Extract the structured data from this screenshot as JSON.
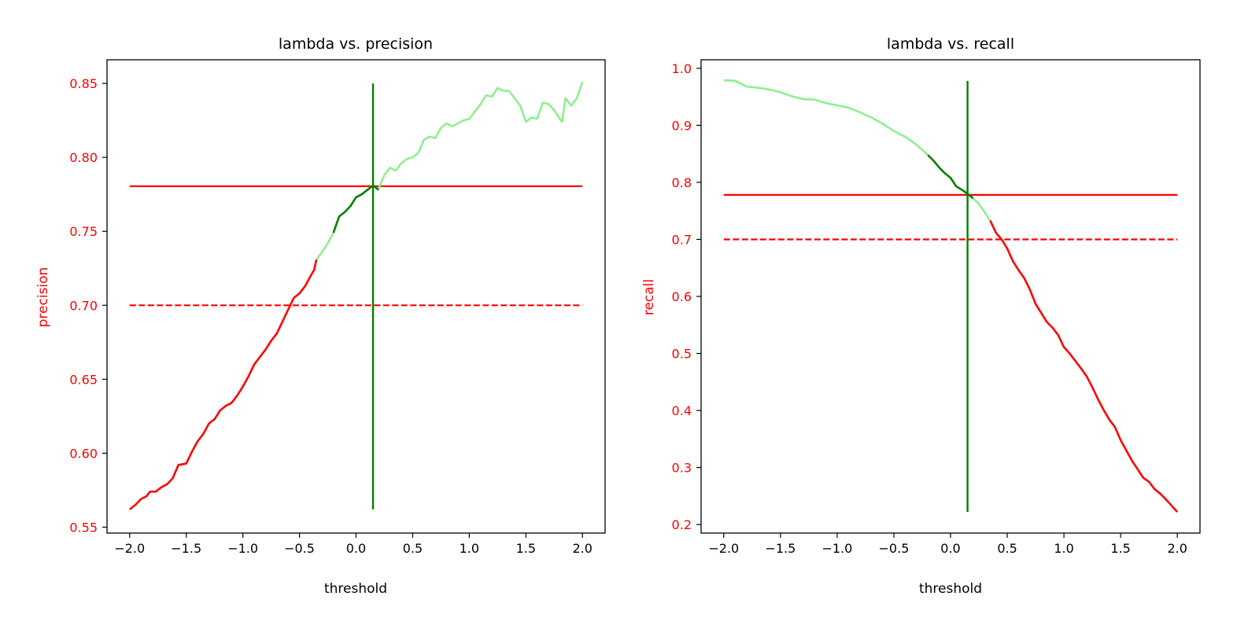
{
  "colors": {
    "red": "#ff0000",
    "green": "#008000",
    "lightgreen": "#90ee90",
    "axis": "#000000"
  },
  "chart_data": [
    {
      "type": "line",
      "title": "lambda vs. precision",
      "xlabel": "threshold",
      "ylabel": "precision",
      "xlim": [
        -2.2,
        2.2
      ],
      "ylim": [
        0.546,
        0.866
      ],
      "xticks": [
        -2.0,
        -1.5,
        -1.0,
        -0.5,
        0.0,
        0.5,
        1.0,
        1.5,
        2.0
      ],
      "xtick_labels": [
        "−2.0",
        "−1.5",
        "−1.0",
        "−0.5",
        "0.0",
        "0.5",
        "1.0",
        "1.5",
        "2.0"
      ],
      "yticks": [
        0.55,
        0.6,
        0.65,
        0.7,
        0.75,
        0.8,
        0.85
      ],
      "ytick_labels": [
        "0.55",
        "0.60",
        "0.65",
        "0.70",
        "0.75",
        "0.80",
        "0.85"
      ],
      "ylabel_color": "red",
      "yticks_color": "red",
      "grid": false,
      "hlines": [
        {
          "y": 0.7805,
          "color": "red",
          "style": "solid"
        },
        {
          "y": 0.7,
          "color": "red",
          "style": "dashed"
        }
      ],
      "vline": {
        "x": 0.15,
        "y0": 0.562,
        "y1": 0.85,
        "color": "green"
      },
      "series": [
        {
          "color": "red",
          "points": [
            [
              -2.0,
              0.562
            ],
            [
              -1.95,
              0.565
            ],
            [
              -1.9,
              0.569
            ],
            [
              -1.85,
              0.571
            ],
            [
              -1.82,
              0.574
            ],
            [
              -1.77,
              0.574
            ],
            [
              -1.72,
              0.577
            ],
            [
              -1.67,
              0.579
            ],
            [
              -1.62,
              0.583
            ],
            [
              -1.57,
              0.592
            ],
            [
              -1.5,
              0.593
            ],
            [
              -1.45,
              0.601
            ],
            [
              -1.4,
              0.608
            ],
            [
              -1.35,
              0.613
            ],
            [
              -1.3,
              0.62
            ],
            [
              -1.25,
              0.623
            ],
            [
              -1.2,
              0.629
            ],
            [
              -1.15,
              0.632
            ],
            [
              -1.1,
              0.634
            ],
            [
              -1.05,
              0.639
            ],
            [
              -1.0,
              0.645
            ],
            [
              -0.95,
              0.652
            ],
            [
              -0.9,
              0.66
            ],
            [
              -0.85,
              0.665
            ],
            [
              -0.8,
              0.67
            ],
            [
              -0.75,
              0.676
            ],
            [
              -0.7,
              0.681
            ],
            [
              -0.65,
              0.689
            ],
            [
              -0.6,
              0.697
            ],
            [
              -0.55,
              0.705
            ],
            [
              -0.5,
              0.708
            ],
            [
              -0.45,
              0.713
            ],
            [
              -0.4,
              0.72
            ],
            [
              -0.37,
              0.724
            ],
            [
              -0.35,
              0.731
            ]
          ]
        },
        {
          "color": "lightgreen",
          "points": [
            [
              -0.35,
              0.731
            ],
            [
              -0.3,
              0.736
            ],
            [
              -0.25,
              0.742
            ],
            [
              -0.2,
              0.749
            ]
          ]
        },
        {
          "color": "green",
          "points": [
            [
              -0.2,
              0.749
            ],
            [
              -0.15,
              0.76
            ],
            [
              -0.1,
              0.763
            ],
            [
              -0.05,
              0.767
            ],
            [
              0.0,
              0.773
            ],
            [
              0.05,
              0.775
            ],
            [
              0.1,
              0.778
            ],
            [
              0.15,
              0.781
            ],
            [
              0.2,
              0.778
            ]
          ]
        },
        {
          "color": "lightgreen",
          "points": [
            [
              0.2,
              0.779
            ],
            [
              0.25,
              0.788
            ],
            [
              0.3,
              0.793
            ],
            [
              0.35,
              0.791
            ],
            [
              0.4,
              0.796
            ],
            [
              0.45,
              0.799
            ],
            [
              0.5,
              0.8
            ],
            [
              0.55,
              0.803
            ],
            [
              0.6,
              0.812
            ],
            [
              0.65,
              0.814
            ],
            [
              0.7,
              0.813
            ],
            [
              0.75,
              0.82
            ],
            [
              0.8,
              0.823
            ],
            [
              0.85,
              0.821
            ],
            [
              0.9,
              0.823
            ],
            [
              0.95,
              0.825
            ],
            [
              1.0,
              0.826
            ],
            [
              1.05,
              0.831
            ],
            [
              1.1,
              0.836
            ],
            [
              1.15,
              0.842
            ],
            [
              1.2,
              0.841
            ],
            [
              1.25,
              0.847
            ],
            [
              1.3,
              0.845
            ],
            [
              1.35,
              0.845
            ],
            [
              1.4,
              0.84
            ],
            [
              1.45,
              0.835
            ],
            [
              1.5,
              0.824
            ],
            [
              1.55,
              0.827
            ],
            [
              1.6,
              0.826
            ],
            [
              1.65,
              0.837
            ],
            [
              1.7,
              0.836
            ],
            [
              1.75,
              0.832
            ],
            [
              1.8,
              0.826
            ],
            [
              1.82,
              0.824
            ],
            [
              1.85,
              0.84
            ],
            [
              1.9,
              0.835
            ],
            [
              1.95,
              0.84
            ],
            [
              2.0,
              0.851
            ]
          ]
        }
      ]
    },
    {
      "type": "line",
      "title": "lambda vs. recall",
      "xlabel": "threshold",
      "ylabel": "recall",
      "xlim": [
        -2.2,
        2.2
      ],
      "ylim": [
        0.185,
        1.015
      ],
      "xticks": [
        -2.0,
        -1.5,
        -1.0,
        -0.5,
        0.0,
        0.5,
        1.0,
        1.5,
        2.0
      ],
      "xtick_labels": [
        "−2.0",
        "−1.5",
        "−1.0",
        "−0.5",
        "0.0",
        "0.5",
        "1.0",
        "1.5",
        "2.0"
      ],
      "yticks": [
        0.2,
        0.3,
        0.4,
        0.5,
        0.6,
        0.7,
        0.8,
        0.9,
        1.0
      ],
      "ytick_labels": [
        "0.2",
        "0.3",
        "0.4",
        "0.5",
        "0.6",
        "0.7",
        "0.8",
        "0.9",
        "1.0"
      ],
      "ylabel_color": "red",
      "yticks_color": "red",
      "grid": false,
      "hlines": [
        {
          "y": 0.778,
          "color": "red",
          "style": "solid"
        },
        {
          "y": 0.7,
          "color": "red",
          "style": "dashed"
        }
      ],
      "vline": {
        "x": 0.15,
        "y0": 0.222,
        "y1": 0.978,
        "color": "green"
      },
      "series": [
        {
          "color": "lightgreen",
          "points": [
            [
              -2.0,
              0.979
            ],
            [
              -1.9,
              0.978
            ],
            [
              -1.8,
              0.968
            ],
            [
              -1.7,
              0.966
            ],
            [
              -1.6,
              0.963
            ],
            [
              -1.5,
              0.958
            ],
            [
              -1.4,
              0.951
            ],
            [
              -1.3,
              0.946
            ],
            [
              -1.2,
              0.945
            ],
            [
              -1.1,
              0.939
            ],
            [
              -1.0,
              0.935
            ],
            [
              -0.9,
              0.931
            ],
            [
              -0.8,
              0.923
            ],
            [
              -0.7,
              0.914
            ],
            [
              -0.6,
              0.903
            ],
            [
              -0.5,
              0.89
            ],
            [
              -0.4,
              0.88
            ],
            [
              -0.3,
              0.866
            ],
            [
              -0.2,
              0.848
            ]
          ]
        },
        {
          "color": "green",
          "points": [
            [
              -0.2,
              0.848
            ],
            [
              -0.15,
              0.838
            ],
            [
              -0.1,
              0.826
            ],
            [
              -0.05,
              0.816
            ],
            [
              0.0,
              0.808
            ],
            [
              0.05,
              0.793
            ],
            [
              0.1,
              0.787
            ],
            [
              0.15,
              0.78
            ],
            [
              0.2,
              0.772
            ]
          ]
        },
        {
          "color": "lightgreen",
          "points": [
            [
              0.2,
              0.772
            ],
            [
              0.25,
              0.762
            ],
            [
              0.3,
              0.748
            ],
            [
              0.35,
              0.733
            ]
          ]
        },
        {
          "color": "red",
          "points": [
            [
              0.35,
              0.733
            ],
            [
              0.4,
              0.712
            ],
            [
              0.45,
              0.7
            ],
            [
              0.5,
              0.684
            ],
            [
              0.55,
              0.662
            ],
            [
              0.6,
              0.646
            ],
            [
              0.65,
              0.632
            ],
            [
              0.7,
              0.612
            ],
            [
              0.75,
              0.587
            ],
            [
              0.8,
              0.571
            ],
            [
              0.85,
              0.555
            ],
            [
              0.9,
              0.545
            ],
            [
              0.95,
              0.532
            ],
            [
              1.0,
              0.511
            ],
            [
              1.05,
              0.5
            ],
            [
              1.1,
              0.487
            ],
            [
              1.15,
              0.474
            ],
            [
              1.2,
              0.46
            ],
            [
              1.25,
              0.441
            ],
            [
              1.3,
              0.42
            ],
            [
              1.35,
              0.401
            ],
            [
              1.4,
              0.384
            ],
            [
              1.45,
              0.371
            ],
            [
              1.5,
              0.348
            ],
            [
              1.55,
              0.33
            ],
            [
              1.6,
              0.312
            ],
            [
              1.65,
              0.297
            ],
            [
              1.7,
              0.282
            ],
            [
              1.75,
              0.275
            ],
            [
              1.8,
              0.262
            ],
            [
              1.85,
              0.254
            ],
            [
              1.9,
              0.244
            ],
            [
              1.95,
              0.233
            ],
            [
              2.0,
              0.222
            ]
          ]
        }
      ]
    }
  ]
}
